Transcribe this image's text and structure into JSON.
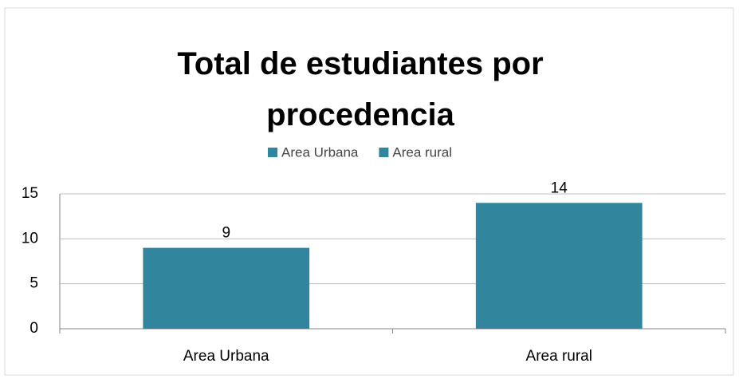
{
  "chart_data": {
    "type": "bar",
    "title": "Total de estudiantes por procedencia",
    "categories": [
      "Area Urbana",
      "Area rural"
    ],
    "series": [
      {
        "name": "Area Urbana",
        "color": "#31859c",
        "values": [
          9,
          null
        ]
      },
      {
        "name": "Area rural",
        "color": "#31859c",
        "values": [
          null,
          14
        ]
      }
    ],
    "ylim": [
      0,
      15
    ],
    "yticks": [
      0,
      5,
      10,
      15
    ],
    "grid": true,
    "legend": "top"
  }
}
